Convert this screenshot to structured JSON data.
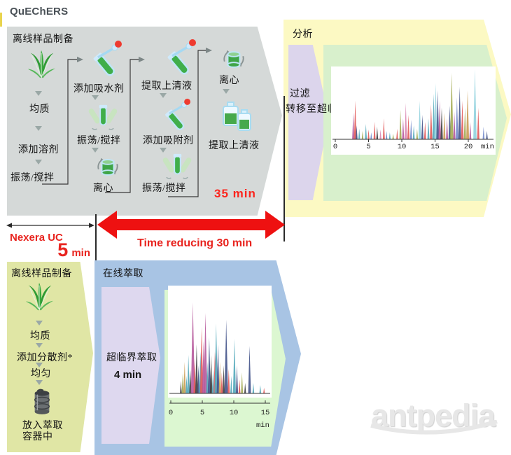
{
  "quechers": {
    "title": "QuEChERS",
    "prep_title": "离线样品制备",
    "col1": [
      "均质",
      "添加溶剂",
      "振荡/搅拌"
    ],
    "col2": [
      "添加吸水剂",
      "振荡/搅拌",
      "离心"
    ],
    "col3": [
      "提取上清液",
      "添加吸附剂",
      "振荡/搅拌"
    ],
    "col4": [
      "离心",
      "提取上清液"
    ],
    "duration": "35 min"
  },
  "analysis": {
    "title": "分析",
    "step1": "过滤",
    "step2": "转移至超临界分析"
  },
  "comparison": {
    "nexera_label": "Nexera UC",
    "nexera_time_value": "5",
    "nexera_time_unit": "min",
    "reduction_label": "Time reducing 30 min"
  },
  "nexera": {
    "prep_title": "离线样品制备",
    "steps": [
      "均质",
      "添加分散剂*",
      "均匀"
    ],
    "final_line1": "放入萃取",
    "final_line2": "容器中",
    "online_title": "在线萃取",
    "sfe_label": "超临界萃取",
    "sfe_time": "4 min"
  },
  "watermark": "antpedia",
  "colors": {
    "gray_box": "#d5d9d8",
    "yellow_box": "#fcf9c3",
    "lavender": "#dcd5ec",
    "green_top": "#d8f0cc",
    "green_bottom": "#dcf7d1",
    "blue_box": "#a8c4e4",
    "olive_box": "#e0e6a5",
    "red_arrow": "#ee1111",
    "red_text": "#e8241f"
  },
  "palette": [
    "#b5559a",
    "#e05555",
    "#4fa6b8",
    "#3d4e86",
    "#a0a84f",
    "#6f86c9",
    "#8ed0dd",
    "#3a3a3a",
    "#c99a50",
    "#d884b0"
  ],
  "chart_data": [
    {
      "type": "line",
      "name": "quechers-chromatogram",
      "title": "",
      "xlabel": "min",
      "x_ticks": [
        0,
        5,
        10,
        15,
        20
      ],
      "x_range": [
        0,
        23.5
      ],
      "peaks": [
        [
          2.7,
          38,
          0
        ],
        [
          3.0,
          55,
          1
        ],
        [
          3.2,
          20,
          3
        ],
        [
          3.6,
          15,
          2
        ],
        [
          4.1,
          12,
          4
        ],
        [
          4.6,
          22,
          2
        ],
        [
          5.0,
          14,
          1
        ],
        [
          5.4,
          10,
          5
        ],
        [
          5.9,
          25,
          1
        ],
        [
          6.3,
          18,
          7
        ],
        [
          6.8,
          14,
          9
        ],
        [
          7.3,
          30,
          1
        ],
        [
          7.7,
          12,
          5
        ],
        [
          8.2,
          10,
          2
        ],
        [
          8.7,
          8,
          4
        ],
        [
          9.3,
          15,
          1
        ],
        [
          9.8,
          42,
          4
        ],
        [
          10.2,
          30,
          0
        ],
        [
          10.6,
          52,
          9
        ],
        [
          11.0,
          35,
          1
        ],
        [
          11.4,
          28,
          5
        ],
        [
          11.8,
          20,
          2
        ],
        [
          12.3,
          15,
          4
        ],
        [
          12.7,
          55,
          6
        ],
        [
          13.1,
          35,
          3
        ],
        [
          13.5,
          25,
          1
        ],
        [
          14.0,
          30,
          2
        ],
        [
          14.4,
          50,
          1
        ],
        [
          14.8,
          65,
          2
        ],
        [
          15.1,
          80,
          6
        ],
        [
          15.4,
          70,
          3
        ],
        [
          15.7,
          55,
          0
        ],
        [
          16.0,
          45,
          7
        ],
        [
          16.4,
          38,
          8
        ],
        [
          16.8,
          30,
          0
        ],
        [
          17.2,
          48,
          3
        ],
        [
          17.5,
          95,
          4
        ],
        [
          17.9,
          40,
          0
        ],
        [
          18.3,
          60,
          5
        ],
        [
          18.7,
          75,
          3
        ],
        [
          19.1,
          55,
          1
        ],
        [
          19.5,
          45,
          4
        ],
        [
          19.9,
          70,
          8
        ],
        [
          20.3,
          25,
          0
        ],
        [
          21.0,
          100,
          6
        ],
        [
          21.5,
          45,
          1
        ],
        [
          22.3,
          18,
          5
        ],
        [
          22.8,
          12,
          3
        ]
      ]
    },
    {
      "type": "line",
      "name": "nexera-chromatogram",
      "title": "",
      "xlabel": "min",
      "x_ticks": [
        0,
        5,
        10,
        15
      ],
      "x_range": [
        0,
        16
      ],
      "peaks": [
        [
          1.6,
          18,
          7
        ],
        [
          1.9,
          30,
          4
        ],
        [
          2.2,
          45,
          8
        ],
        [
          2.5,
          25,
          2
        ],
        [
          2.8,
          55,
          2
        ],
        [
          3.1,
          35,
          7
        ],
        [
          3.5,
          130,
          0
        ],
        [
          3.8,
          50,
          1
        ],
        [
          4.1,
          70,
          7
        ],
        [
          4.4,
          40,
          3
        ],
        [
          4.7,
          60,
          2
        ],
        [
          4.9,
          95,
          1
        ],
        [
          5.2,
          75,
          0
        ],
        [
          5.5,
          115,
          0
        ],
        [
          5.8,
          45,
          2
        ],
        [
          6.1,
          80,
          3
        ],
        [
          6.4,
          55,
          7
        ],
        [
          6.7,
          35,
          2
        ],
        [
          7.0,
          60,
          1
        ],
        [
          7.2,
          100,
          2
        ],
        [
          7.5,
          70,
          3
        ],
        [
          7.8,
          45,
          8
        ],
        [
          8.1,
          30,
          1
        ],
        [
          8.4,
          40,
          7
        ],
        [
          8.8,
          105,
          3
        ],
        [
          9.2,
          35,
          1
        ],
        [
          9.6,
          25,
          2
        ],
        [
          10.1,
          78,
          2
        ],
        [
          10.5,
          40,
          3
        ],
        [
          10.9,
          20,
          1
        ],
        [
          11.3,
          30,
          4
        ],
        [
          11.8,
          15,
          7
        ],
        [
          12.5,
          68,
          3
        ],
        [
          13.1,
          15,
          2
        ],
        [
          14.2,
          12,
          2
        ],
        [
          14.8,
          8,
          1
        ]
      ]
    }
  ]
}
